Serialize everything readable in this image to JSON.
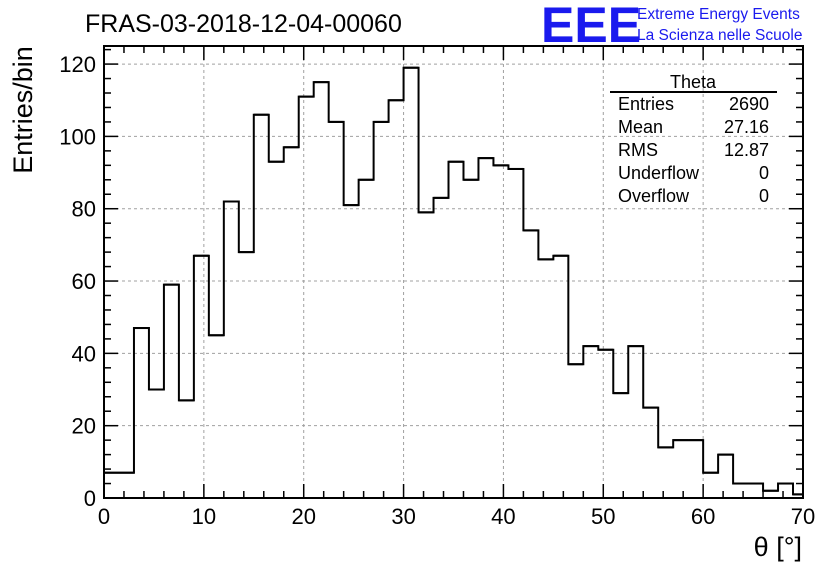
{
  "chart_data": {
    "type": "histogram",
    "title": "FRAS-03-2018-12-04-00060",
    "xlabel": "θ [°]",
    "ylabel": "Entries/bin",
    "xlim": [
      0,
      70
    ],
    "ylim": [
      0,
      125
    ],
    "x_ticks": [
      0,
      10,
      20,
      30,
      40,
      50,
      60,
      70
    ],
    "y_ticks": [
      0,
      20,
      40,
      60,
      80,
      100,
      120
    ],
    "grid": true,
    "bin_width": 1.5,
    "bins": [
      {
        "x0": 0.0,
        "x1": 1.5,
        "count": 7
      },
      {
        "x0": 1.5,
        "x1": 3.0,
        "count": 7
      },
      {
        "x0": 3.0,
        "x1": 4.5,
        "count": 47
      },
      {
        "x0": 4.5,
        "x1": 6.0,
        "count": 30
      },
      {
        "x0": 6.0,
        "x1": 7.5,
        "count": 59
      },
      {
        "x0": 7.5,
        "x1": 9.0,
        "count": 27
      },
      {
        "x0": 9.0,
        "x1": 10.5,
        "count": 67
      },
      {
        "x0": 10.5,
        "x1": 12.0,
        "count": 45
      },
      {
        "x0": 12.0,
        "x1": 13.5,
        "count": 82
      },
      {
        "x0": 13.5,
        "x1": 15.0,
        "count": 68
      },
      {
        "x0": 15.0,
        "x1": 16.5,
        "count": 106
      },
      {
        "x0": 16.5,
        "x1": 18.0,
        "count": 93
      },
      {
        "x0": 18.0,
        "x1": 19.5,
        "count": 97
      },
      {
        "x0": 19.5,
        "x1": 21.0,
        "count": 111
      },
      {
        "x0": 21.0,
        "x1": 22.5,
        "count": 115
      },
      {
        "x0": 22.5,
        "x1": 24.0,
        "count": 104
      },
      {
        "x0": 24.0,
        "x1": 25.5,
        "count": 81
      },
      {
        "x0": 25.5,
        "x1": 27.0,
        "count": 88
      },
      {
        "x0": 27.0,
        "x1": 28.5,
        "count": 104
      },
      {
        "x0": 28.5,
        "x1": 30.0,
        "count": 110
      },
      {
        "x0": 30.0,
        "x1": 31.5,
        "count": 119
      },
      {
        "x0": 31.5,
        "x1": 33.0,
        "count": 79
      },
      {
        "x0": 33.0,
        "x1": 34.5,
        "count": 83
      },
      {
        "x0": 34.5,
        "x1": 36.0,
        "count": 93
      },
      {
        "x0": 36.0,
        "x1": 37.5,
        "count": 88
      },
      {
        "x0": 37.5,
        "x1": 39.0,
        "count": 94
      },
      {
        "x0": 39.0,
        "x1": 40.5,
        "count": 92
      },
      {
        "x0": 40.5,
        "x1": 42.0,
        "count": 91
      },
      {
        "x0": 42.0,
        "x1": 43.5,
        "count": 74
      },
      {
        "x0": 43.5,
        "x1": 45.0,
        "count": 66
      },
      {
        "x0": 45.0,
        "x1": 46.5,
        "count": 67
      },
      {
        "x0": 46.5,
        "x1": 48.0,
        "count": 37
      },
      {
        "x0": 48.0,
        "x1": 49.5,
        "count": 42
      },
      {
        "x0": 49.5,
        "x1": 51.0,
        "count": 41
      },
      {
        "x0": 51.0,
        "x1": 52.5,
        "count": 29
      },
      {
        "x0": 52.5,
        "x1": 54.0,
        "count": 42
      },
      {
        "x0": 54.0,
        "x1": 55.5,
        "count": 25
      },
      {
        "x0": 55.5,
        "x1": 57.0,
        "count": 14
      },
      {
        "x0": 57.0,
        "x1": 58.5,
        "count": 16
      },
      {
        "x0": 58.5,
        "x1": 60.0,
        "count": 16
      },
      {
        "x0": 60.0,
        "x1": 61.5,
        "count": 7
      },
      {
        "x0": 61.5,
        "x1": 63.0,
        "count": 12
      },
      {
        "x0": 63.0,
        "x1": 64.5,
        "count": 4
      },
      {
        "x0": 64.5,
        "x1": 66.0,
        "count": 4
      },
      {
        "x0": 66.0,
        "x1": 67.5,
        "count": 2
      },
      {
        "x0": 67.5,
        "x1": 69.0,
        "count": 4
      },
      {
        "x0": 69.0,
        "x1": 70.0,
        "count": 1
      }
    ],
    "stats_box": {
      "placement": "top-right",
      "title": "Theta",
      "rows": [
        {
          "label": "Entries",
          "value": "2690"
        },
        {
          "label": "Mean",
          "value": "27.16"
        },
        {
          "label": "RMS",
          "value": "12.87"
        },
        {
          "label": "Underflow",
          "value": "0"
        },
        {
          "label": "Overflow",
          "value": "0"
        }
      ]
    }
  },
  "logo": {
    "mark": "EEE",
    "line1": "Extreme Energy Events",
    "line2": "La Scienza nelle Scuole",
    "color": "#1a1aee"
  },
  "colors": {
    "histogram_line": "#000000",
    "grid": "#a0a0a0",
    "frame": "#000000"
  }
}
